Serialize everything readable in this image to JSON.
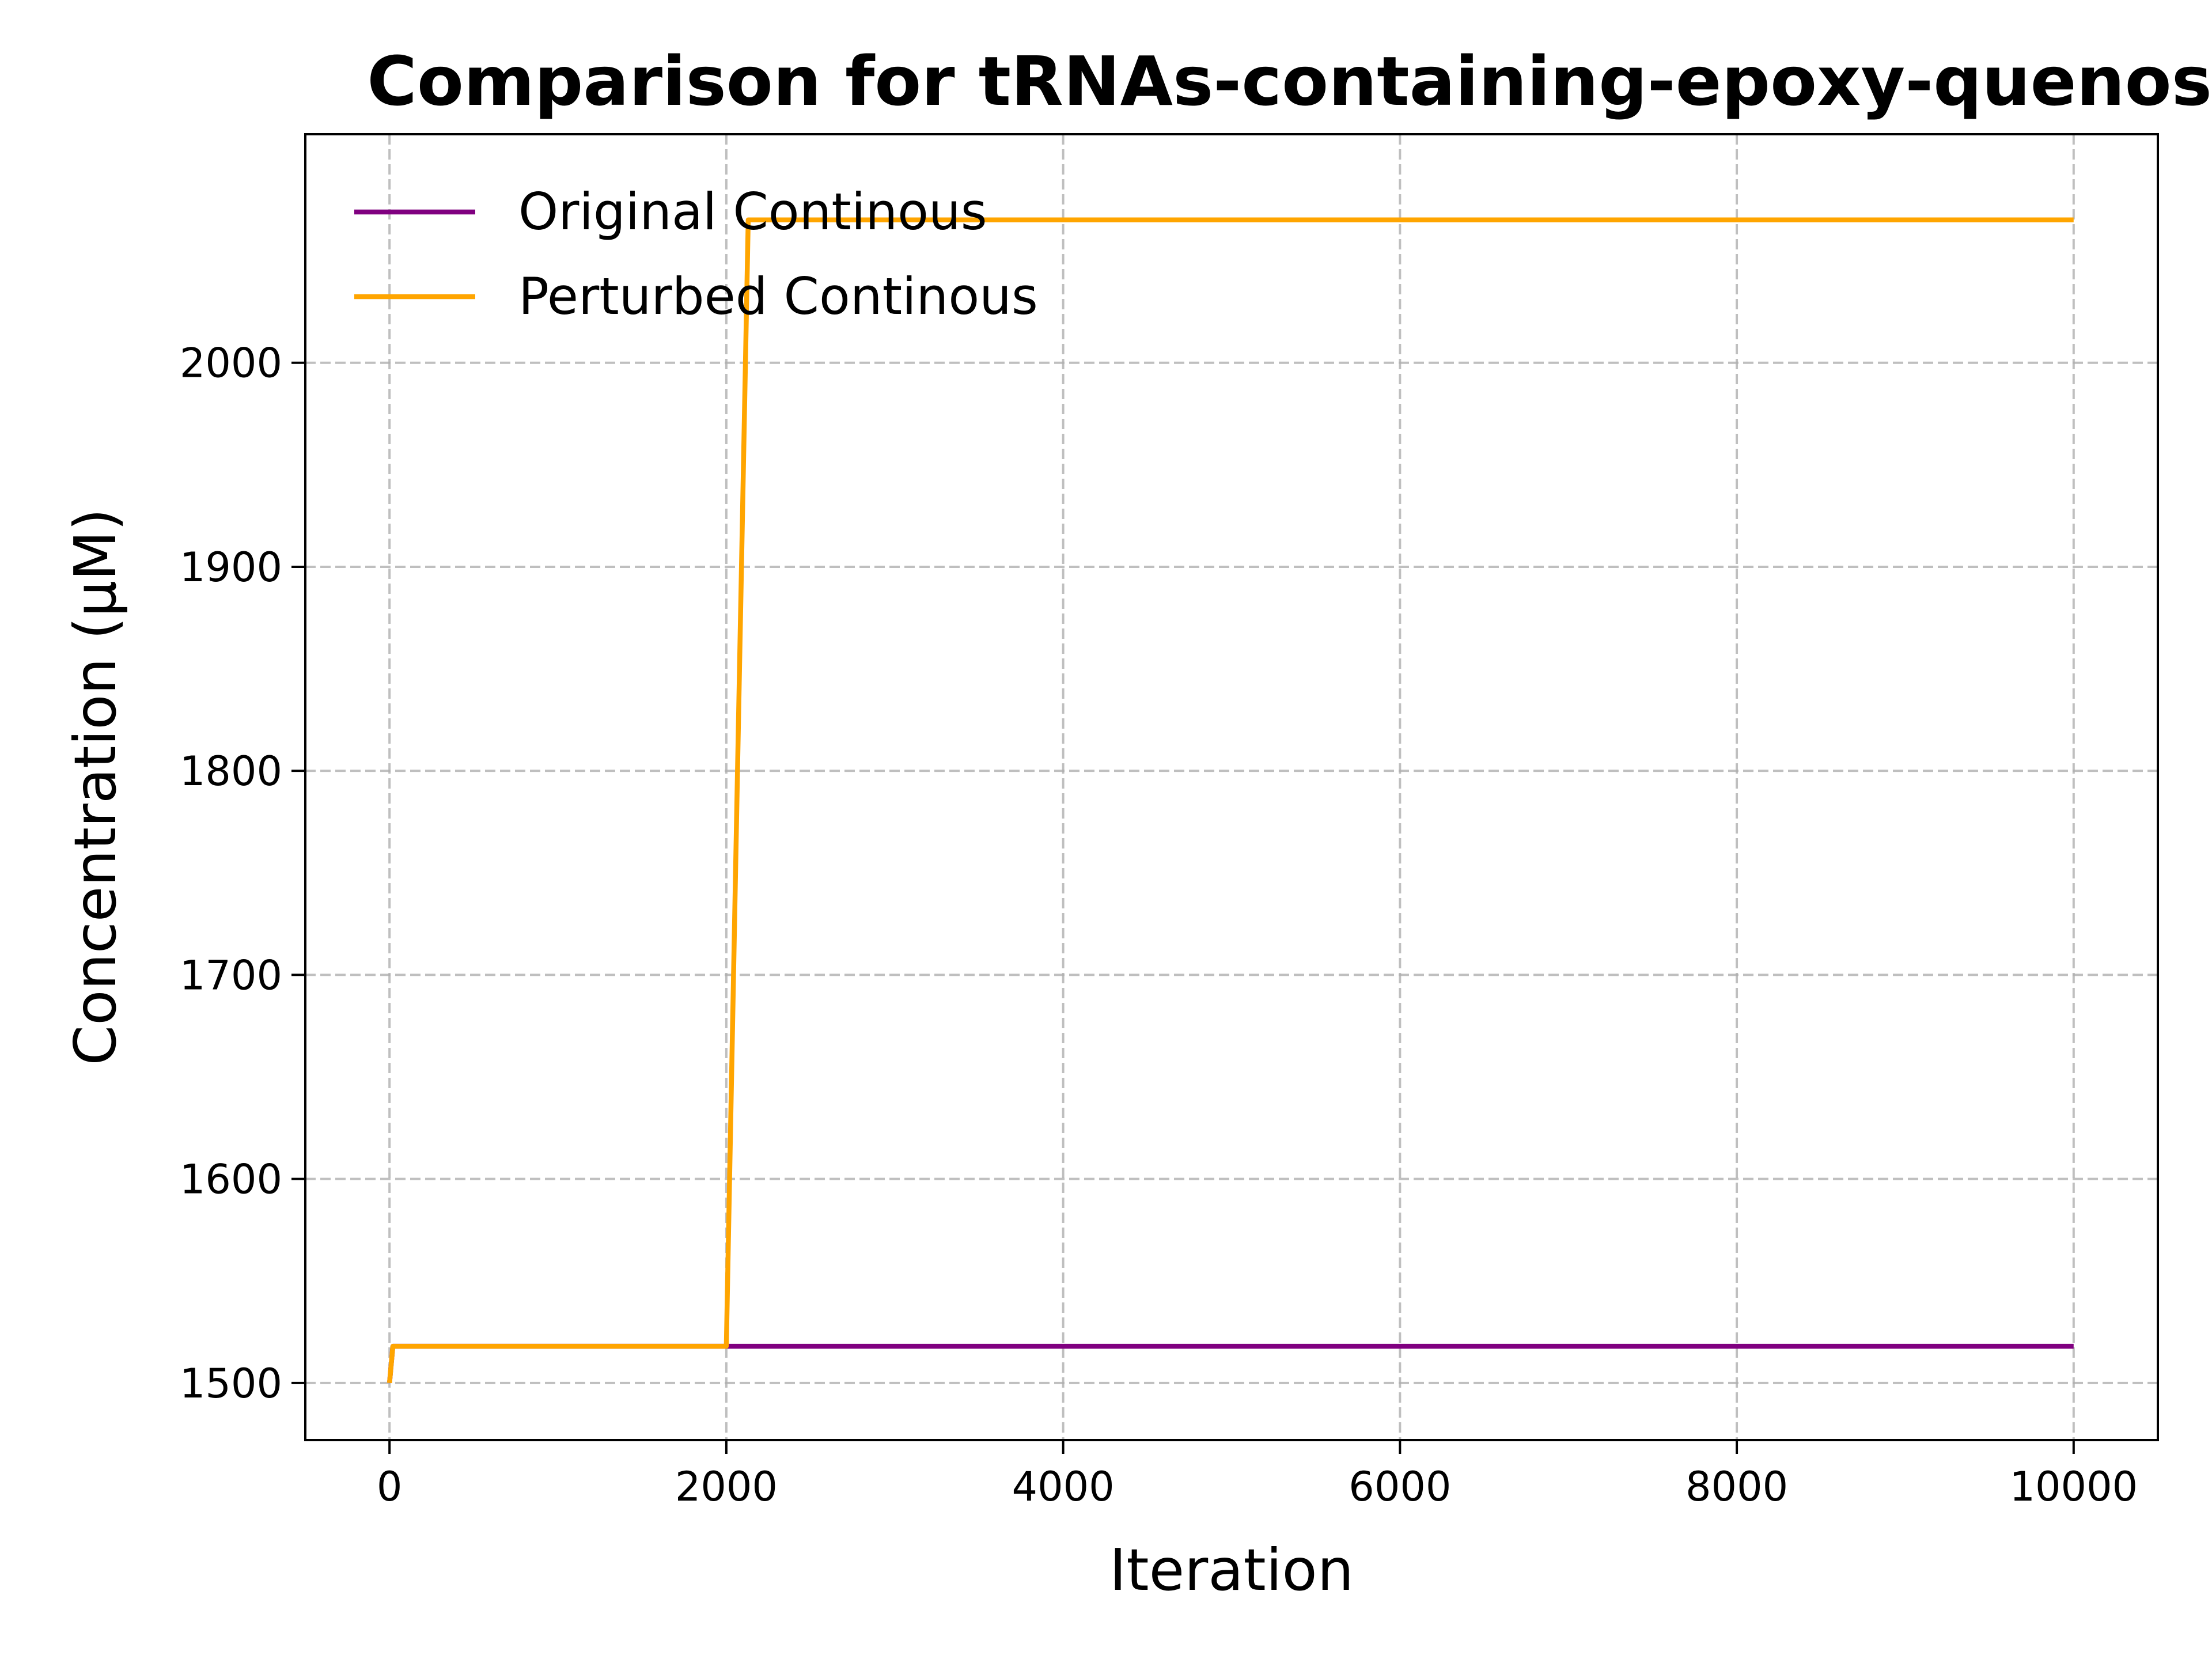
{
  "chart_data": {
    "type": "line",
    "title": "Comparison for tRNAs-containing-epoxy-quenos",
    "xlabel": "Iteration",
    "ylabel": "Concentration (μM)",
    "xlim": [
      -500,
      10500
    ],
    "ylim": [
      1472,
      2112
    ],
    "x_ticks": [
      0,
      2000,
      4000,
      6000,
      8000,
      10000
    ],
    "x_tick_labels": [
      "0",
      "2000",
      "4000",
      "6000",
      "8000",
      "10000"
    ],
    "y_ticks": [
      1500,
      1600,
      1700,
      1800,
      1900,
      2000
    ],
    "y_tick_labels": [
      "1500",
      "1600",
      "1700",
      "1800",
      "1900",
      "2000"
    ],
    "grid": true,
    "legend_position": "upper-left",
    "series": [
      {
        "name": "Original Continous",
        "color": "#800080",
        "points": [
          [
            0,
            1500
          ],
          [
            20,
            1518
          ],
          [
            10000,
            1518
          ]
        ]
      },
      {
        "name": "Perturbed Continous",
        "color": "#FFA500",
        "points": [
          [
            0,
            1500
          ],
          [
            20,
            1518
          ],
          [
            2000,
            1518
          ],
          [
            2130,
            2070
          ],
          [
            10000,
            2070
          ]
        ]
      }
    ]
  }
}
